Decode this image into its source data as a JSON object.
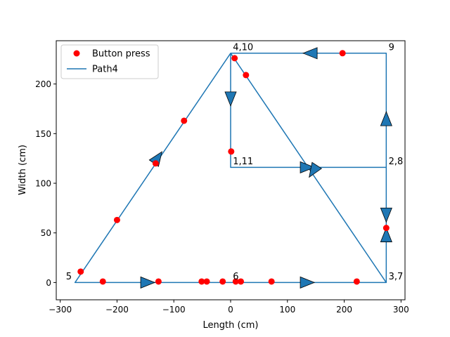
{
  "chart_data": {
    "type": "line",
    "title": "",
    "xlabel": "Length (cm)",
    "ylabel": "Width (cm)",
    "xlim": [
      -307,
      307
    ],
    "ylim": [
      -17.4,
      243.6
    ],
    "xticks": [
      -300,
      -200,
      -100,
      0,
      100,
      200,
      300
    ],
    "yticks": [
      0,
      50,
      100,
      150,
      200
    ],
    "xtick_labels": [
      "−300",
      "−200",
      "−100",
      "0",
      "100",
      "200",
      "300"
    ],
    "ytick_labels": [
      "0",
      "50",
      "100",
      "150",
      "200"
    ],
    "grid": false,
    "legend_position": "upper-left",
    "series": [
      {
        "name": "Path4",
        "kind": "line",
        "color": "#1f77b4",
        "x": [
          0,
          0,
          274,
          274,
          274,
          0,
          -274,
          0,
          274,
          274,
          274,
          0,
          0,
          0
        ],
        "y": [
          116,
          231,
          231,
          116,
          0,
          231,
          0,
          0,
          0,
          116,
          116,
          116,
          116,
          231
        ]
      },
      {
        "name": "Button press",
        "kind": "scatter",
        "color": "#ff0000",
        "x": [
          -264,
          -225,
          -127,
          -51,
          -42,
          -14,
          9,
          18,
          72,
          222,
          274,
          -200,
          -132,
          -82,
          7,
          27,
          197,
          1
        ],
        "y": [
          11,
          1,
          1,
          1,
          1,
          1,
          1,
          1,
          1,
          1,
          55,
          63,
          120,
          163,
          226,
          209,
          231,
          132
        ]
      }
    ],
    "arrows": [
      {
        "x": 0,
        "y": 185,
        "dir": "down"
      },
      {
        "x": 135,
        "y": 116,
        "dir": "right"
      },
      {
        "x": 145,
        "y": 112,
        "dir": "down-left"
      },
      {
        "x": 274,
        "y": 165,
        "dir": "up"
      },
      {
        "x": 274,
        "y": 68,
        "dir": "down"
      },
      {
        "x": 274,
        "y": 48,
        "dir": "up"
      },
      {
        "x": 135,
        "y": 0,
        "dir": "right"
      },
      {
        "x": -146,
        "y": 0,
        "dir": "right"
      },
      {
        "x": -128,
        "y": 126,
        "dir": "up-right"
      },
      {
        "x": 140,
        "y": 231,
        "dir": "left"
      }
    ],
    "annotations": [
      {
        "text": "4,10",
        "x": 4,
        "y": 234
      },
      {
        "text": "9",
        "x": 278,
        "y": 234
      },
      {
        "text": "1,11",
        "x": 4,
        "y": 119
      },
      {
        "text": "2,8",
        "x": 278,
        "y": 119
      },
      {
        "text": "3,7",
        "x": 278,
        "y": 3
      },
      {
        "text": "6",
        "x": 4,
        "y": 3
      },
      {
        "text": "5",
        "x": -290,
        "y": 3
      }
    ]
  }
}
